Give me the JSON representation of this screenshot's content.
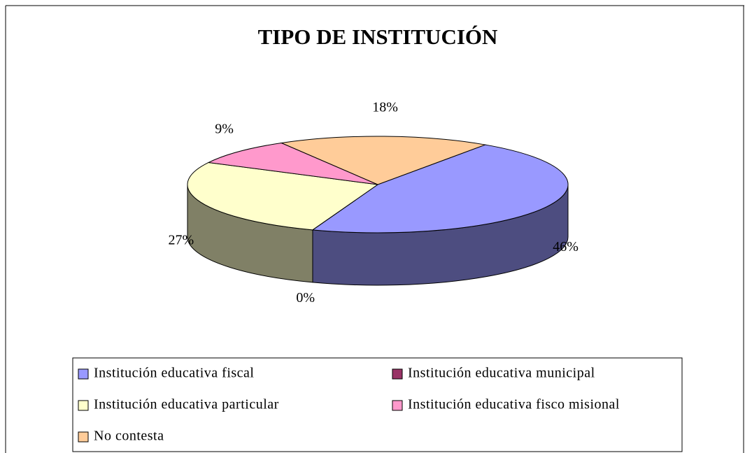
{
  "chart_data": {
    "type": "pie",
    "title": "TIPO DE INSTITUCIÓN",
    "categories": [
      "Institución educativa fiscal",
      "Institución educativa municipal",
      "Institución educativa particular",
      "Institución educativa fisco misional",
      "No contesta"
    ],
    "values": [
      46,
      0,
      27,
      9,
      18
    ],
    "value_labels": [
      "46%",
      "0%",
      "27%",
      "9%",
      "18%"
    ],
    "colors": [
      "#9999ff",
      "#993366",
      "#ffffcc",
      "#ff99cc",
      "#ffcc99"
    ],
    "legend": "bottom"
  }
}
